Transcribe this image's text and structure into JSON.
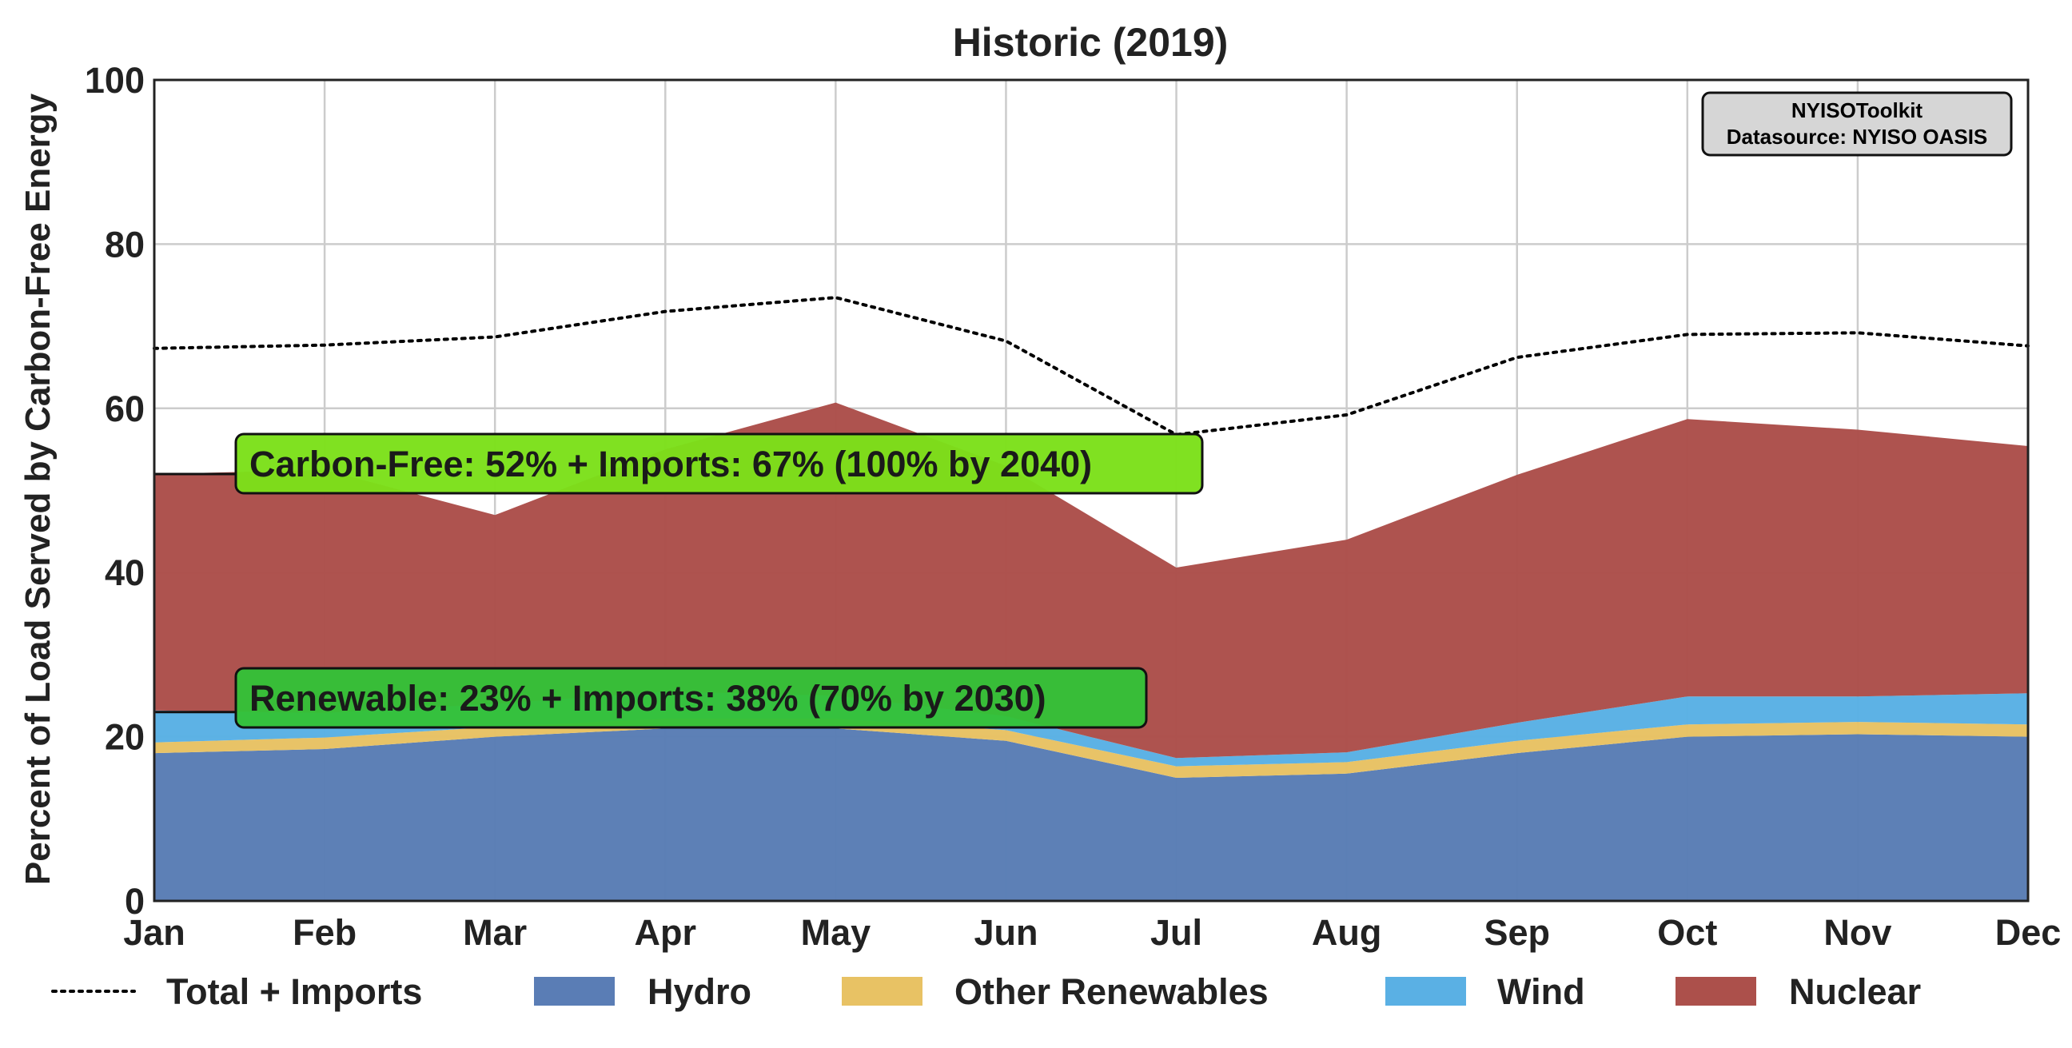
{
  "chart_data": {
    "type": "area",
    "stacked": true,
    "title": "Historic (2019)",
    "xlabel": "",
    "ylabel": "Percent of Load Served by Carbon-Free Energy",
    "ylim": [
      0,
      100
    ],
    "yticks": [
      0,
      20,
      40,
      60,
      80,
      100
    ],
    "grid": true,
    "categories": [
      "Jan",
      "Feb",
      "Mar",
      "Apr",
      "May",
      "Jun",
      "Jul",
      "Aug",
      "Sep",
      "Oct",
      "Nov",
      "Dec"
    ],
    "series": [
      {
        "name": "Hydro",
        "color": "#5a7db5",
        "values": [
          18.0,
          18.5,
          20.0,
          21.0,
          21.0,
          19.5,
          15.0,
          15.5,
          18.0,
          20.0,
          20.3,
          20.0
        ]
      },
      {
        "name": "Other Renewables",
        "color": "#e8c264",
        "values": [
          1.3,
          1.4,
          1.2,
          1.2,
          1.2,
          1.3,
          1.4,
          1.4,
          1.5,
          1.5,
          1.5,
          1.5
        ]
      },
      {
        "name": "Wind",
        "color": "#5ab0e4",
        "values": [
          3.9,
          3.0,
          2.8,
          3.3,
          2.8,
          1.7,
          1.0,
          1.2,
          2.2,
          3.4,
          3.1,
          3.8
        ]
      },
      {
        "name": "Nuclear",
        "color": "#ac504b",
        "values": [
          28.8,
          29.6,
          23.0,
          29.5,
          35.7,
          30.5,
          23.2,
          25.9,
          30.2,
          33.8,
          32.5,
          30.1
        ]
      }
    ],
    "line_series": [
      {
        "name": "Total + Imports",
        "style": "dotted",
        "color": "#000000",
        "values": [
          67.3,
          67.7,
          68.7,
          71.8,
          73.5,
          68.2,
          56.8,
          59.2,
          66.2,
          69.0,
          69.2,
          67.6
        ]
      }
    ],
    "annotations": [
      {
        "text": "Carbon-Free: 52% + Imports: 67% (100% by 2040)",
        "anchor_y": 52,
        "color": "#7ce01a"
      },
      {
        "text": "Renewable: 23% + Imports: 38% (70% by 2030)",
        "anchor_y": 23,
        "color": "#34c138"
      }
    ],
    "infobox": {
      "line1": "NYISOToolkit",
      "line2": "Datasource: NYISO OASIS"
    },
    "legend_position": "bottom"
  }
}
